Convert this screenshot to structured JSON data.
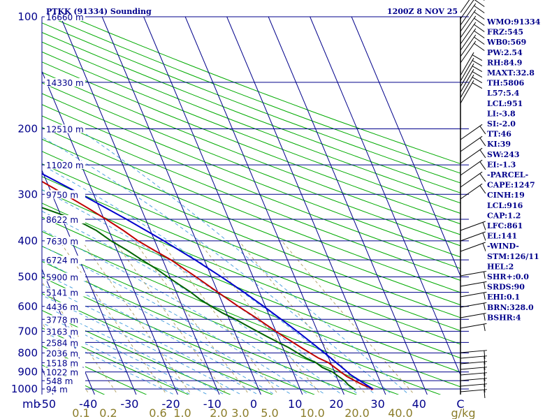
{
  "header": {
    "title_left": "PTKK (91334) Sounding",
    "title_right": "1200Z  8 NOV 25"
  },
  "chart_data": {
    "type": "skew-t",
    "pressure_ticks": [
      100,
      200,
      300,
      400,
      500,
      600,
      700,
      800,
      900,
      1000
    ],
    "pressure_range": [
      100,
      1000
    ],
    "temperature_ticks": [
      "-50",
      "-40",
      "-30",
      "-20",
      "-10",
      "0",
      "10",
      "20",
      "30",
      "40",
      "C"
    ],
    "temperature_axis_prefix": "mb",
    "mixing_ratio_ticks": [
      "0.1",
      "0.2",
      "0.6",
      "1.0",
      "2.0",
      "3.0",
      "5.0",
      "10.0",
      "20.0",
      "40.0",
      "g/kg"
    ],
    "mixing_ratio_values": [
      0.1,
      0.2,
      0.6,
      1.0,
      2.0,
      3.0,
      5.0,
      10.0,
      20.0,
      40.0
    ],
    "height_labels": [
      {
        "p": 100,
        "label": "16660 m"
      },
      {
        "p": 150,
        "label": "14330 m"
      },
      {
        "p": 200,
        "label": "12510 m"
      },
      {
        "p": 250,
        "label": "11020 m"
      },
      {
        "p": 300,
        "label": "9750 m"
      },
      {
        "p": 350,
        "label": "8622 m"
      },
      {
        "p": 400,
        "label": "7630 m"
      },
      {
        "p": 450,
        "label": "6724 m"
      },
      {
        "p": 500,
        "label": "5900 m"
      },
      {
        "p": 550,
        "label": "5141 m"
      },
      {
        "p": 600,
        "label": "4436 m"
      },
      {
        "p": 650,
        "label": "3778 m"
      },
      {
        "p": 700,
        "label": "3163 m"
      },
      {
        "p": 750,
        "label": "2584 m"
      },
      {
        "p": 800,
        "label": "2036 m"
      },
      {
        "p": 850,
        "label": "1518 m"
      },
      {
        "p": 900,
        "label": "1022 m"
      },
      {
        "p": 950,
        "label": "548 m"
      },
      {
        "p": 1000,
        "label": "94 m"
      }
    ],
    "series": [
      {
        "name": "temperature",
        "color": "#c00000",
        "points": [
          [
            1005,
            27
          ],
          [
            1000,
            27.5
          ],
          [
            975,
            25.5
          ],
          [
            950,
            24
          ],
          [
            925,
            22.5
          ],
          [
            900,
            21.5
          ],
          [
            875,
            20.5
          ],
          [
            850,
            19.5
          ],
          [
            825,
            17.5
          ],
          [
            800,
            16
          ],
          [
            775,
            14.5
          ],
          [
            750,
            13
          ],
          [
            725,
            11.5
          ],
          [
            700,
            10
          ],
          [
            675,
            8.5
          ],
          [
            650,
            7
          ],
          [
            625,
            5.3
          ],
          [
            600,
            3.5
          ],
          [
            575,
            1.8
          ],
          [
            550,
            0
          ],
          [
            525,
            -1.8
          ],
          [
            500,
            -3.7
          ],
          [
            475,
            -5.8
          ],
          [
            450,
            -8
          ],
          [
            425,
            -11
          ],
          [
            400,
            -14
          ],
          [
            375,
            -16.5
          ],
          [
            350,
            -19.5
          ],
          [
            325,
            -23
          ],
          [
            300,
            -27
          ],
          [
            275,
            -31.5
          ],
          [
            250,
            -36.5
          ],
          [
            225,
            -42
          ],
          [
            200,
            -48
          ],
          [
            175,
            -55
          ],
          [
            150,
            -62.5
          ],
          [
            125,
            -71
          ],
          [
            100,
            -81
          ]
        ]
      },
      {
        "name": "dewpoint",
        "color": "#006400",
        "points": [
          [
            1005,
            23.3
          ],
          [
            1000,
            23
          ],
          [
            975,
            22
          ],
          [
            950,
            21.5
          ],
          [
            925,
            20.5
          ],
          [
            900,
            19.5
          ],
          [
            875,
            17.5
          ],
          [
            850,
            16.5
          ],
          [
            825,
            14.5
          ],
          [
            800,
            13
          ],
          [
            775,
            11.5
          ],
          [
            750,
            9.5
          ],
          [
            725,
            7.5
          ],
          [
            700,
            5.5
          ],
          [
            675,
            3.5
          ],
          [
            650,
            1.5
          ],
          [
            625,
            -1
          ],
          [
            600,
            -3
          ],
          [
            575,
            -5
          ],
          [
            550,
            -6.5
          ],
          [
            525,
            -8.5
          ],
          [
            500,
            -10.5
          ],
          [
            475,
            -12.5
          ],
          [
            450,
            -15
          ],
          [
            425,
            -17.5
          ],
          [
            400,
            -20.5
          ],
          [
            375,
            -23
          ],
          [
            350,
            -27
          ],
          [
            325,
            -34
          ],
          [
            300,
            -42
          ],
          [
            275,
            -50
          ],
          [
            250,
            -58
          ],
          [
            225,
            -62
          ],
          [
            200,
            -65
          ],
          [
            175,
            -70
          ],
          [
            150,
            -75
          ],
          [
            125,
            -80
          ],
          [
            100,
            -85
          ]
        ]
      },
      {
        "name": "parcel",
        "color": "#0000cd",
        "points": [
          [
            1000,
            27.5
          ],
          [
            950,
            25.2
          ],
          [
            916,
            23.6
          ],
          [
            900,
            23.1
          ],
          [
            850,
            21.4
          ],
          [
            800,
            19.5
          ],
          [
            750,
            17.4
          ],
          [
            700,
            15.1
          ],
          [
            650,
            12.5
          ],
          [
            600,
            9.6
          ],
          [
            550,
            6.3
          ],
          [
            500,
            2.4
          ],
          [
            450,
            -2.2
          ],
          [
            400,
            -7.8
          ],
          [
            350,
            -14.6
          ],
          [
            300,
            -23
          ],
          [
            250,
            -33.5
          ],
          [
            200,
            -46.5
          ],
          [
            170,
            -56
          ],
          [
            141,
            -66.5
          ],
          [
            120,
            -76
          ],
          [
            110,
            -81
          ]
        ]
      }
    ],
    "wind_barbs_visible": true
  },
  "indices": [
    "WMO:91334",
    "FRZ:545",
    "WB0:569",
    "PW:2.54",
    "RH:84.9",
    "MAXT:32.8",
    "TH:5806",
    "L57:5.4",
    "LCL:951",
    "LI:-3.8",
    "SI:-2.0",
    "TT:46",
    "KI:39",
    "SW:243",
    "EI:-1.3",
    "-PARCEL-",
    "CAPE:1247",
    "CINH:19",
    "LCL:916",
    "CAP:1.2",
    "LFC:861",
    "EL:141",
    "-WIND-",
    "STM:126/11",
    "HEL:2",
    "SHR+:0.0",
    "SRDS:90",
    "EHI:0.1",
    "BRN:328.0",
    "BSHR:4"
  ],
  "colors": {
    "isobar": "#00008b",
    "isotherm": "#00008b",
    "dry_adiabat": "#00aa00",
    "moist_adiabat": "#4fa3e0",
    "mixing_ratio": "#b5a56a",
    "label_text": "#00008b"
  }
}
